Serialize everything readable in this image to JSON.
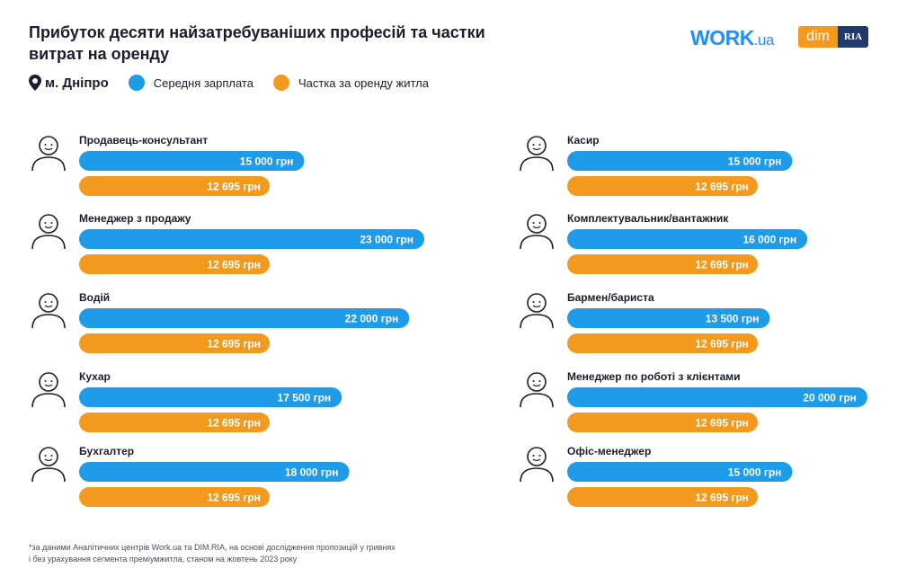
{
  "header": {
    "title": "Прибуток десяти найзатребуваніших професій та частки витрат на оренду",
    "city": "м. Дніпро",
    "logo_work": "WORK",
    "logo_work_ua": ".ua",
    "logo_dim": "dim",
    "logo_ria": "RIA"
  },
  "colors": {
    "salary": "#1e9be9",
    "rent": "#f39a1e"
  },
  "chart_data": {
    "type": "bar",
    "orientation": "horizontal",
    "unit": "грн",
    "series": [
      {
        "name": "Середня зарплата",
        "color": "#1e9be9"
      },
      {
        "name": "Частка за оренду житла",
        "color": "#f39a1e"
      }
    ],
    "columns": [
      [
        {
          "profession": "Продавець-консультант",
          "icon": "salesperson-icon",
          "salary": 15000,
          "salary_label": "15 000 грн",
          "rent": 12695,
          "rent_label": "12 695 грн"
        },
        {
          "profession": "Менеджер з продажу",
          "icon": "sales-manager-headset-icon",
          "salary": 23000,
          "salary_label": "23 000 грн",
          "rent": 12695,
          "rent_label": "12 695 грн"
        },
        {
          "profession": "Водій",
          "icon": "driver-steering-wheel-icon",
          "salary": 22000,
          "salary_label": "22 000 грн",
          "rent": 12695,
          "rent_label": "12 695 грн"
        },
        {
          "profession": "Кухар",
          "icon": "cook-hat-icon",
          "salary": 17500,
          "salary_label": "17 500 грн",
          "rent": 12695,
          "rent_label": "12 695 грн"
        },
        {
          "profession": "Бухгалтер",
          "icon": "accountant-glasses-icon",
          "salary": 18000,
          "salary_label": "18 000 грн",
          "rent": 12695,
          "rent_label": "12 695 грн"
        }
      ],
      [
        {
          "profession": "Касир",
          "icon": "cashier-icon",
          "salary": 15000,
          "salary_label": "15 000 грн",
          "rent": 12695,
          "rent_label": "12 695 грн"
        },
        {
          "profession": "Комплектувальник/вантажник",
          "icon": "loader-cap-icon",
          "salary": 16000,
          "salary_label": "16 000 грн",
          "rent": 12695,
          "rent_label": "12 695 грн"
        },
        {
          "profession": "Бармен/бариста",
          "icon": "barista-cup-icon",
          "salary": 13500,
          "salary_label": "13 500 грн",
          "rent": 12695,
          "rent_label": "12 695 грн"
        },
        {
          "profession": "Менеджер по роботі з клієнтами",
          "icon": "client-manager-laptop-icon",
          "salary": 20000,
          "salary_label": "20 000 грн",
          "rent": 12695,
          "rent_label": "12 695 грн"
        },
        {
          "profession": "Офіс-менеджер",
          "icon": "office-manager-icon",
          "salary": 15000,
          "salary_label": "15 000 грн",
          "rent": 12695,
          "rent_label": "12 695 грн"
        }
      ]
    ]
  },
  "footnote": {
    "line1": "*за даними Аналітичних центрів Work.ua та DIM.RIA, на основі дослідження пропозицій у гривнях",
    "line2": "і без урахування сегмента преміумжитла, станом на жовтень 2023 року"
  }
}
